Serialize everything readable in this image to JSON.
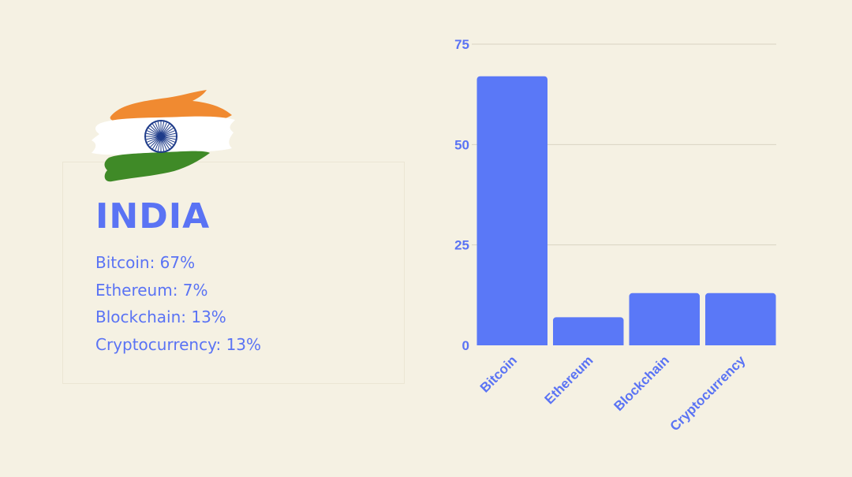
{
  "country": {
    "name": "INDIA",
    "flag_icon": "india-flag-brushstroke-icon",
    "stats": [
      "Bitcoin: 67%",
      "Ethereum: 7%",
      "Blockchain: 13%",
      "Cryptocurrency: 13%"
    ]
  },
  "colors": {
    "background": "#f5f1e3",
    "accent": "#5a73f4",
    "bar": "#5a78f7",
    "flag_saffron": "#f08a31",
    "flag_green": "#3f8a27",
    "flag_white": "#ffffff",
    "flag_chakra": "#1f3c8a"
  },
  "chart_data": {
    "type": "bar",
    "categories": [
      "Bitcoin",
      "Ethereum",
      "Blockchain",
      "Cryptocurrency"
    ],
    "values": [
      67,
      7,
      13,
      13
    ],
    "title": "",
    "xlabel": "",
    "ylabel": "",
    "ylim": [
      0,
      75
    ],
    "yticks": [
      0,
      25,
      50,
      75
    ],
    "grid": true,
    "legend": "none"
  }
}
